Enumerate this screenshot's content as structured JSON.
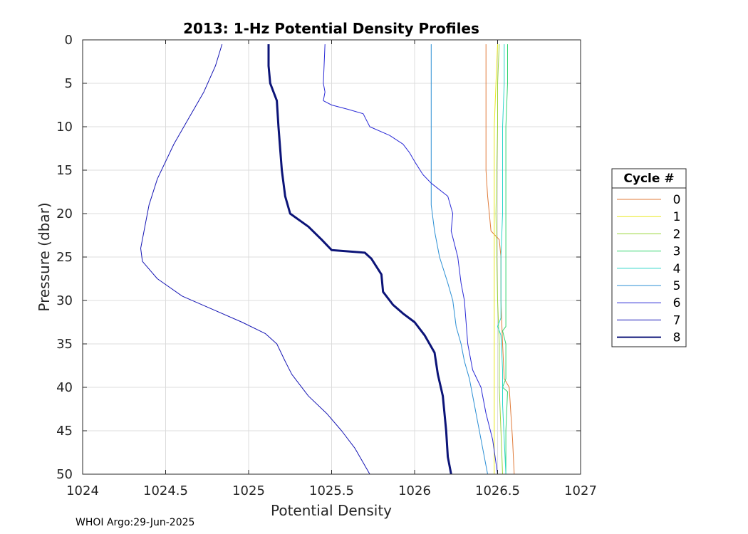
{
  "chart_data": {
    "type": "line",
    "title": "2013: 1-Hz Potential Density Profiles",
    "xlabel": "Potential Density",
    "ylabel": "Pressure (dbar)",
    "xlim": [
      1024,
      1027
    ],
    "ylim": [
      0,
      50
    ],
    "y_reversed": true,
    "xticks": [
      1024,
      1024.5,
      1025,
      1025.5,
      1026,
      1026.5,
      1027
    ],
    "xtick_labels": [
      "1024",
      "1024.5",
      "1025",
      "1025.5",
      "1026",
      "1026.5",
      "1027"
    ],
    "yticks": [
      0,
      5,
      10,
      15,
      20,
      25,
      30,
      35,
      40,
      45,
      50
    ],
    "ytick_labels": [
      "0",
      "5",
      "10",
      "15",
      "20",
      "25",
      "30",
      "35",
      "40",
      "45",
      "50"
    ],
    "grid": true,
    "legend": {
      "title": "Cycle #",
      "placement": "right"
    },
    "series": [
      {
        "name": "0",
        "color": "#e07b39",
        "width": 1,
        "points": [
          [
            1026.43,
            0.5
          ],
          [
            1026.43,
            5
          ],
          [
            1026.43,
            10
          ],
          [
            1026.43,
            15
          ],
          [
            1026.44,
            18
          ],
          [
            1026.45,
            20
          ],
          [
            1026.46,
            22
          ],
          [
            1026.51,
            23
          ],
          [
            1026.52,
            25
          ],
          [
            1026.52,
            30
          ],
          [
            1026.53,
            35
          ],
          [
            1026.54,
            39
          ],
          [
            1026.57,
            40
          ],
          [
            1026.58,
            43
          ],
          [
            1026.59,
            46
          ],
          [
            1026.6,
            50
          ]
        ]
      },
      {
        "name": "1",
        "color": "#e8e820",
        "width": 1,
        "points": [
          [
            1026.5,
            0.5
          ],
          [
            1026.49,
            5
          ],
          [
            1026.48,
            10
          ],
          [
            1026.48,
            20
          ],
          [
            1026.48,
            30
          ],
          [
            1026.48,
            40
          ],
          [
            1026.48,
            50
          ]
        ]
      },
      {
        "name": "2",
        "color": "#9ad43a",
        "width": 1,
        "points": [
          [
            1026.51,
            0.5
          ],
          [
            1026.5,
            5
          ],
          [
            1026.5,
            10
          ],
          [
            1026.49,
            20
          ],
          [
            1026.5,
            30
          ],
          [
            1026.51,
            35
          ],
          [
            1026.51,
            40
          ],
          [
            1026.52,
            45
          ],
          [
            1026.53,
            50
          ]
        ]
      },
      {
        "name": "3",
        "color": "#33d46e",
        "width": 1,
        "points": [
          [
            1026.56,
            0.5
          ],
          [
            1026.56,
            5
          ],
          [
            1026.55,
            10
          ],
          [
            1026.55,
            20
          ],
          [
            1026.55,
            25
          ],
          [
            1026.55,
            33
          ],
          [
            1026.53,
            33.5
          ],
          [
            1026.55,
            35
          ],
          [
            1026.55,
            39
          ],
          [
            1026.53,
            40
          ],
          [
            1026.56,
            40.5
          ],
          [
            1026.55,
            45
          ],
          [
            1026.55,
            50
          ]
        ]
      },
      {
        "name": "4",
        "color": "#2ad6c8",
        "width": 1,
        "points": [
          [
            1026.54,
            0.5
          ],
          [
            1026.54,
            5
          ],
          [
            1026.53,
            10
          ],
          [
            1026.53,
            20
          ],
          [
            1026.52,
            25
          ],
          [
            1026.52,
            32
          ],
          [
            1026.5,
            33
          ],
          [
            1026.52,
            34
          ],
          [
            1026.53,
            38
          ],
          [
            1026.53,
            42
          ],
          [
            1026.54,
            46
          ],
          [
            1026.55,
            50
          ]
        ]
      },
      {
        "name": "5",
        "color": "#2b8fd4",
        "width": 1,
        "points": [
          [
            1026.1,
            0.5
          ],
          [
            1026.1,
            5
          ],
          [
            1026.1,
            10
          ],
          [
            1026.1,
            15
          ],
          [
            1026.1,
            19
          ],
          [
            1026.12,
            22
          ],
          [
            1026.15,
            25
          ],
          [
            1026.2,
            28
          ],
          [
            1026.23,
            30
          ],
          [
            1026.25,
            33
          ],
          [
            1026.28,
            35
          ],
          [
            1026.3,
            37
          ],
          [
            1026.33,
            39
          ],
          [
            1026.36,
            42
          ],
          [
            1026.4,
            46
          ],
          [
            1026.44,
            50
          ]
        ]
      },
      {
        "name": "6",
        "color": "#2a2ad6",
        "width": 1,
        "points": [
          [
            1025.46,
            0.5
          ],
          [
            1025.45,
            5
          ],
          [
            1025.46,
            6
          ],
          [
            1025.45,
            7
          ],
          [
            1025.5,
            7.5
          ],
          [
            1025.6,
            8
          ],
          [
            1025.69,
            8.5
          ],
          [
            1025.73,
            10
          ],
          [
            1025.85,
            11
          ],
          [
            1025.93,
            12
          ],
          [
            1025.97,
            13
          ],
          [
            1026.0,
            14
          ],
          [
            1026.05,
            15.5
          ],
          [
            1026.1,
            16.5
          ],
          [
            1026.2,
            18
          ],
          [
            1026.23,
            20
          ],
          [
            1026.22,
            22
          ],
          [
            1026.26,
            25
          ],
          [
            1026.28,
            28
          ],
          [
            1026.3,
            30
          ],
          [
            1026.32,
            35
          ],
          [
            1026.35,
            38
          ],
          [
            1026.4,
            40
          ],
          [
            1026.43,
            43
          ],
          [
            1026.47,
            46
          ],
          [
            1026.5,
            50
          ]
        ]
      },
      {
        "name": "7",
        "color": "#1515b4",
        "width": 1,
        "points": [
          [
            1024.84,
            0.5
          ],
          [
            1024.8,
            3
          ],
          [
            1024.73,
            6
          ],
          [
            1024.64,
            9
          ],
          [
            1024.55,
            12
          ],
          [
            1024.45,
            16
          ],
          [
            1024.4,
            19
          ],
          [
            1024.37,
            22
          ],
          [
            1024.35,
            24
          ],
          [
            1024.36,
            25.5
          ],
          [
            1024.45,
            27.5
          ],
          [
            1024.6,
            29.5
          ],
          [
            1024.78,
            31
          ],
          [
            1024.96,
            32.5
          ],
          [
            1025.1,
            33.8
          ],
          [
            1025.17,
            35
          ],
          [
            1025.22,
            37
          ],
          [
            1025.26,
            38.5
          ],
          [
            1025.36,
            41
          ],
          [
            1025.47,
            43
          ],
          [
            1025.56,
            45
          ],
          [
            1025.64,
            47
          ],
          [
            1025.73,
            50
          ]
        ]
      },
      {
        "name": "8",
        "color": "#0c1478",
        "width": 3,
        "points": [
          [
            1025.12,
            0.5
          ],
          [
            1025.12,
            3
          ],
          [
            1025.13,
            5
          ],
          [
            1025.17,
            7
          ],
          [
            1025.18,
            10
          ],
          [
            1025.2,
            15
          ],
          [
            1025.22,
            18
          ],
          [
            1025.25,
            20
          ],
          [
            1025.36,
            21.5
          ],
          [
            1025.44,
            23
          ],
          [
            1025.5,
            24.2
          ],
          [
            1025.7,
            24.5
          ],
          [
            1025.74,
            25.2
          ],
          [
            1025.8,
            27
          ],
          [
            1025.81,
            29
          ],
          [
            1025.87,
            30.5
          ],
          [
            1025.93,
            31.5
          ],
          [
            1026.0,
            32.5
          ],
          [
            1026.06,
            34
          ],
          [
            1026.12,
            36
          ],
          [
            1026.14,
            38.5
          ],
          [
            1026.17,
            41
          ],
          [
            1026.19,
            45
          ],
          [
            1026.2,
            48
          ],
          [
            1026.22,
            50
          ]
        ]
      }
    ]
  },
  "footer": {
    "text": "WHOI Argo:29-Jun-2025"
  }
}
